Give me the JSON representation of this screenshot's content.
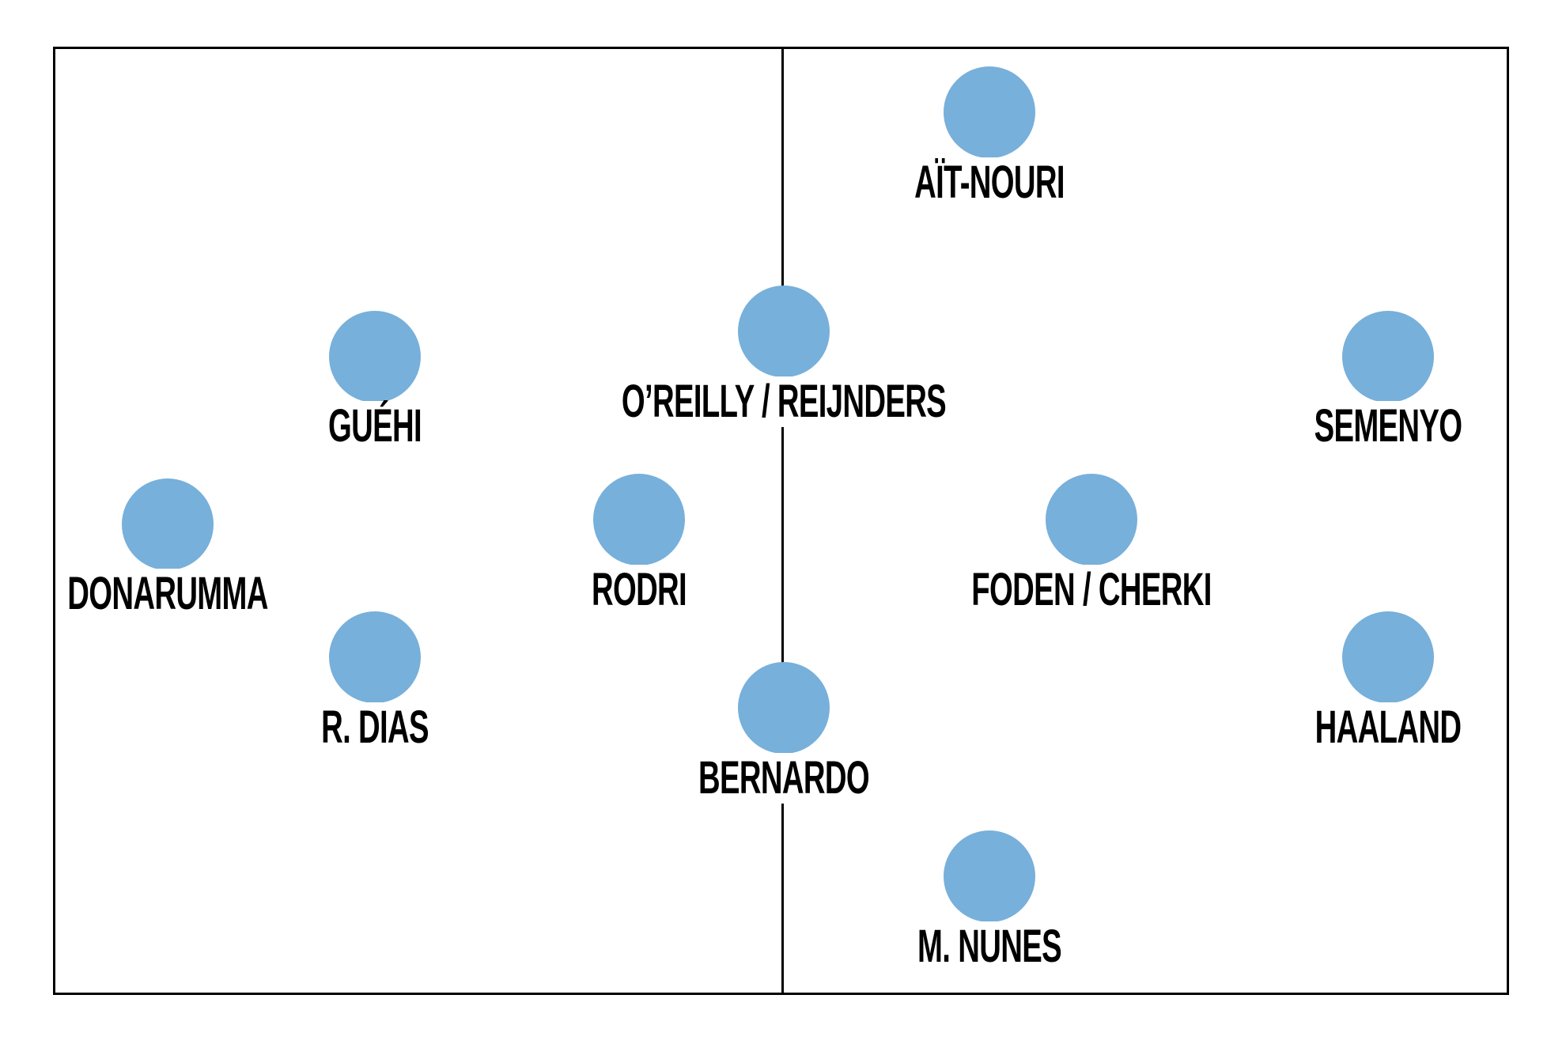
{
  "colors": {
    "player_dot": "#77b0da",
    "lines": "#000000"
  },
  "players": [
    {
      "name": "AÏT-NOURI"
    },
    {
      "name": "O’REILLY / REIJNDERS"
    },
    {
      "name": "GUÉHI"
    },
    {
      "name": "SEMENYO"
    },
    {
      "name": "DONARUMMA"
    },
    {
      "name": "RODRI"
    },
    {
      "name": "FODEN / CHERKI"
    },
    {
      "name": "R. DIAS"
    },
    {
      "name": "HAALAND"
    },
    {
      "name": "BERNARDO"
    },
    {
      "name": "M. NUNES"
    }
  ]
}
